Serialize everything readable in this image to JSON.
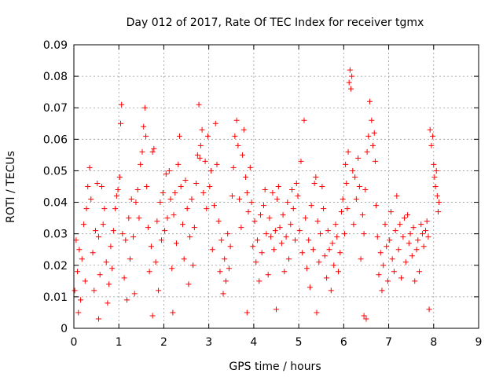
{
  "chart_data": {
    "type": "scatter",
    "title": "Day 012 of 2017, Rate Of TEC Index for receiver tgmx",
    "xlabel": "GPS time / hours",
    "ylabel": "ROTI / TECUs",
    "xlim": [
      0,
      9
    ],
    "ylim": [
      0,
      0.09
    ],
    "xticks": [
      "0",
      "1",
      "2",
      "3",
      "4",
      "5",
      "6",
      "7",
      "8",
      "9"
    ],
    "yticks": [
      "0",
      "0.01",
      "0.02",
      "0.03",
      "0.04",
      "0.05",
      "0.06",
      "0.07",
      "0.08",
      "0.09"
    ],
    "grid": true,
    "marker": "+",
    "color": "#ff0000",
    "series": [
      {
        "points": [
          [
            0.02,
            0.012
          ],
          [
            0.05,
            0.028
          ],
          [
            0.08,
            0.018
          ],
          [
            0.12,
            0.025
          ],
          [
            0.15,
            0.009
          ],
          [
            0.18,
            0.022
          ],
          [
            0.22,
            0.033
          ],
          [
            0.25,
            0.015
          ],
          [
            0.28,
            0.038
          ],
          [
            0.31,
            0.045
          ],
          [
            0.35,
            0.051
          ],
          [
            0.38,
            0.041
          ],
          [
            0.42,
            0.024
          ],
          [
            0.45,
            0.012
          ],
          [
            0.48,
            0.031
          ],
          [
            0.52,
            0.046
          ],
          [
            0.55,
            0.029
          ],
          [
            0.58,
            0.017
          ],
          [
            0.62,
            0.045
          ],
          [
            0.65,
            0.033
          ],
          [
            0.68,
            0.038
          ],
          [
            0.72,
            0.021
          ],
          [
            0.75,
            0.008
          ],
          [
            0.78,
            0.014
          ],
          [
            0.82,
            0.026
          ],
          [
            0.85,
            0.019
          ],
          [
            0.88,
            0.031
          ],
          [
            0.92,
            0.038
          ],
          [
            0.95,
            0.042
          ],
          [
            0.98,
            0.044
          ],
          [
            1.02,
            0.048
          ],
          [
            1.04,
            0.065
          ],
          [
            1.06,
            0.071
          ],
          [
            1.08,
            0.03
          ],
          [
            1.12,
            0.016
          ],
          [
            1.15,
            0.028
          ],
          [
            1.18,
            0.009
          ],
          [
            1.22,
            0.035
          ],
          [
            1.25,
            0.022
          ],
          [
            1.28,
            0.041
          ],
          [
            1.32,
            0.029
          ],
          [
            1.35,
            0.011
          ],
          [
            1.38,
            0.04
          ],
          [
            1.42,
            0.044
          ],
          [
            1.45,
            0.035
          ],
          [
            1.48,
            0.052
          ],
          [
            1.52,
            0.056
          ],
          [
            1.55,
            0.064
          ],
          [
            1.58,
            0.07
          ],
          [
            1.6,
            0.061
          ],
          [
            1.62,
            0.045
          ],
          [
            1.65,
            0.032
          ],
          [
            1.68,
            0.018
          ],
          [
            1.72,
            0.026
          ],
          [
            1.75,
            0.056
          ],
          [
            1.78,
            0.057
          ],
          [
            1.82,
            0.021
          ],
          [
            1.85,
            0.034
          ],
          [
            1.88,
            0.012
          ],
          [
            1.92,
            0.04
          ],
          [
            1.95,
            0.028
          ],
          [
            1.98,
            0.043
          ],
          [
            2.02,
            0.031
          ],
          [
            2.05,
            0.049
          ],
          [
            2.08,
            0.035
          ],
          [
            2.12,
            0.05
          ],
          [
            2.15,
            0.041
          ],
          [
            2.18,
            0.019
          ],
          [
            2.22,
            0.036
          ],
          [
            2.25,
            0.043
          ],
          [
            2.28,
            0.027
          ],
          [
            2.32,
            0.052
          ],
          [
            2.35,
            0.061
          ],
          [
            2.38,
            0.045
          ],
          [
            2.42,
            0.033
          ],
          [
            2.45,
            0.022
          ],
          [
            2.48,
            0.047
          ],
          [
            2.52,
            0.038
          ],
          [
            2.55,
            0.014
          ],
          [
            2.58,
            0.029
          ],
          [
            2.62,
            0.041
          ],
          [
            2.65,
            0.02
          ],
          [
            2.68,
            0.032
          ],
          [
            2.72,
            0.046
          ],
          [
            2.75,
            0.055
          ],
          [
            2.78,
            0.071
          ],
          [
            2.8,
            0.054
          ],
          [
            2.82,
            0.058
          ],
          [
            2.85,
            0.063
          ],
          [
            2.88,
            0.043
          ],
          [
            2.92,
            0.053
          ],
          [
            2.95,
            0.038
          ],
          [
            2.98,
            0.061
          ],
          [
            3.02,
            0.045
          ],
          [
            3.05,
            0.05
          ],
          [
            3.08,
            0.025
          ],
          [
            3.12,
            0.039
          ],
          [
            3.15,
            0.065
          ],
          [
            3.18,
            0.052
          ],
          [
            3.22,
            0.034
          ],
          [
            3.25,
            0.018
          ],
          [
            3.28,
            0.028
          ],
          [
            3.32,
            0.011
          ],
          [
            3.35,
            0.022
          ],
          [
            3.38,
            0.015
          ],
          [
            3.42,
            0.03
          ],
          [
            3.45,
            0.019
          ],
          [
            3.48,
            0.026
          ],
          [
            3.52,
            0.042
          ],
          [
            3.55,
            0.051
          ],
          [
            3.58,
            0.061
          ],
          [
            3.62,
            0.066
          ],
          [
            3.65,
            0.058
          ],
          [
            3.68,
            0.041
          ],
          [
            3.72,
            0.032
          ],
          [
            3.75,
            0.055
          ],
          [
            3.78,
            0.063
          ],
          [
            3.82,
            0.048
          ],
          [
            3.85,
            0.043
          ],
          [
            3.88,
            0.037
          ],
          [
            3.92,
            0.051
          ],
          [
            3.95,
            0.04
          ],
          [
            3.98,
            0.026
          ],
          [
            4.02,
            0.034
          ],
          [
            4.05,
            0.021
          ],
          [
            4.08,
            0.028
          ],
          [
            4.12,
            0.015
          ],
          [
            4.15,
            0.036
          ],
          [
            4.18,
            0.024
          ],
          [
            4.22,
            0.039
          ],
          [
            4.25,
            0.044
          ],
          [
            4.28,
            0.03
          ],
          [
            4.32,
            0.017
          ],
          [
            4.35,
            0.035
          ],
          [
            4.38,
            0.029
          ],
          [
            4.42,
            0.043
          ],
          [
            4.45,
            0.025
          ],
          [
            4.48,
            0.031
          ],
          [
            4.52,
            0.041
          ],
          [
            4.55,
            0.045
          ],
          [
            4.58,
            0.032
          ],
          [
            4.62,
            0.027
          ],
          [
            4.65,
            0.036
          ],
          [
            4.68,
            0.018
          ],
          [
            4.72,
            0.029
          ],
          [
            4.75,
            0.04
          ],
          [
            4.78,
            0.022
          ],
          [
            4.82,
            0.033
          ],
          [
            4.85,
            0.044
          ],
          [
            4.88,
            0.038
          ],
          [
            4.92,
            0.028
          ],
          [
            4.95,
            0.046
          ],
          [
            4.98,
            0.042
          ],
          [
            5.02,
            0.031
          ],
          [
            5.05,
            0.053
          ],
          [
            5.08,
            0.024
          ],
          [
            5.12,
            0.066
          ],
          [
            5.15,
            0.035
          ],
          [
            5.18,
            0.019
          ],
          [
            5.22,
            0.028
          ],
          [
            5.25,
            0.013
          ],
          [
            5.28,
            0.039
          ],
          [
            5.32,
            0.025
          ],
          [
            5.35,
            0.046
          ],
          [
            5.38,
            0.048
          ],
          [
            5.42,
            0.034
          ],
          [
            5.45,
            0.021
          ],
          [
            5.48,
            0.03
          ],
          [
            5.52,
            0.045
          ],
          [
            5.55,
            0.038
          ],
          [
            5.58,
            0.023
          ],
          [
            5.62,
            0.016
          ],
          [
            5.65,
            0.031
          ],
          [
            5.68,
            0.025
          ],
          [
            5.72,
            0.012
          ],
          [
            5.75,
            0.027
          ],
          [
            5.78,
            0.02
          ],
          [
            5.82,
            0.033
          ],
          [
            5.85,
            0.029
          ],
          [
            5.88,
            0.018
          ],
          [
            5.92,
            0.024
          ],
          [
            5.95,
            0.037
          ],
          [
            5.98,
            0.041
          ],
          [
            6.02,
            0.03
          ],
          [
            6.04,
            0.052
          ],
          [
            6.06,
            0.046
          ],
          [
            6.08,
            0.038
          ],
          [
            6.1,
            0.056
          ],
          [
            6.12,
            0.078
          ],
          [
            6.14,
            0.082
          ],
          [
            6.16,
            0.076
          ],
          [
            6.18,
            0.08
          ],
          [
            6.2,
            0.05
          ],
          [
            6.22,
            0.033
          ],
          [
            6.25,
            0.048
          ],
          [
            6.28,
            0.041
          ],
          [
            6.32,
            0.054
          ],
          [
            6.35,
            0.045
          ],
          [
            6.38,
            0.022
          ],
          [
            6.42,
            0.036
          ],
          [
            6.45,
            0.03
          ],
          [
            6.48,
            0.044
          ],
          [
            6.52,
            0.056
          ],
          [
            6.55,
            0.061
          ],
          [
            6.58,
            0.072
          ],
          [
            6.62,
            0.066
          ],
          [
            6.65,
            0.058
          ],
          [
            6.68,
            0.062
          ],
          [
            6.7,
            0.053
          ],
          [
            6.72,
            0.039
          ],
          [
            6.75,
            0.029
          ],
          [
            6.78,
            0.017
          ],
          [
            6.82,
            0.024
          ],
          [
            6.85,
            0.012
          ],
          [
            6.88,
            0.02
          ],
          [
            6.92,
            0.033
          ],
          [
            6.95,
            0.026
          ],
          [
            6.98,
            0.015
          ],
          [
            7.02,
            0.028
          ],
          [
            7.05,
            0.037
          ],
          [
            7.08,
            0.022
          ],
          [
            7.12,
            0.018
          ],
          [
            7.15,
            0.031
          ],
          [
            7.18,
            0.042
          ],
          [
            7.22,
            0.025
          ],
          [
            7.25,
            0.033
          ],
          [
            7.28,
            0.016
          ],
          [
            7.32,
            0.029
          ],
          [
            7.35,
            0.035
          ],
          [
            7.38,
            0.021
          ],
          [
            7.42,
            0.036
          ],
          [
            7.45,
            0.027
          ],
          [
            7.48,
            0.03
          ],
          [
            7.52,
            0.023
          ],
          [
            7.55,
            0.032
          ],
          [
            7.58,
            0.015
          ],
          [
            7.62,
            0.025
          ],
          [
            7.65,
            0.028
          ],
          [
            7.68,
            0.018
          ],
          [
            7.72,
            0.033
          ],
          [
            7.75,
            0.03
          ],
          [
            7.78,
            0.026
          ],
          [
            7.82,
            0.031
          ],
          [
            7.85,
            0.034
          ],
          [
            7.88,
            0.029
          ],
          [
            7.92,
            0.063
          ],
          [
            7.95,
            0.058
          ],
          [
            7.98,
            0.061
          ],
          [
            8.0,
            0.052
          ],
          [
            8.02,
            0.048
          ],
          [
            8.04,
            0.045
          ],
          [
            8.06,
            0.05
          ],
          [
            8.08,
            0.042
          ],
          [
            8.1,
            0.037
          ],
          [
            8.12,
            0.04
          ],
          [
            0.1,
            0.005
          ],
          [
            0.55,
            0.003
          ],
          [
            1.75,
            0.004
          ],
          [
            2.2,
            0.005
          ],
          [
            3.85,
            0.005
          ],
          [
            4.5,
            0.006
          ],
          [
            5.4,
            0.005
          ],
          [
            6.45,
            0.004
          ],
          [
            6.5,
            0.003
          ],
          [
            7.9,
            0.006
          ]
        ]
      }
    ]
  }
}
